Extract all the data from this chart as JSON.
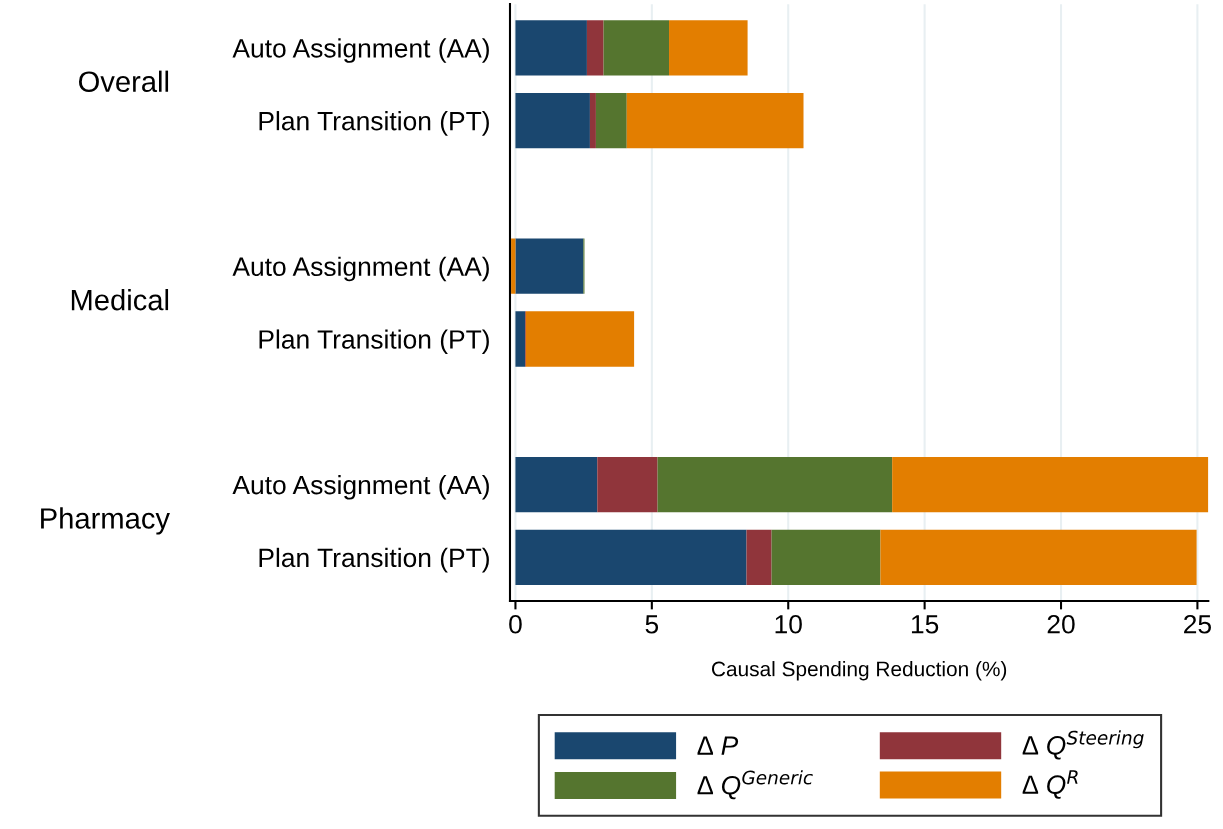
{
  "chart_data": {
    "type": "bar",
    "orientation": "horizontal",
    "stacked": true,
    "categories": [
      "Auto Assignment (AA)",
      "Plan Transition (PT)",
      null,
      "Auto Assignment (AA)",
      "Plan Transition (PT)",
      null,
      "Auto Assignment (AA)",
      "Plan Transition (PT)"
    ],
    "annotations": [
      "Overall",
      "Medical",
      "Pharmacy"
    ],
    "xlabel": "Causal Spending Reduction (%)",
    "xlim": [
      -0.2,
      25.4
    ],
    "xticks": [
      0,
      5,
      10,
      15,
      20,
      25
    ],
    "grid": "x",
    "legend": "bottom",
    "series": [
      {
        "name": "∆ P",
        "color": "#1a476f",
        "values": [
          2.62,
          2.73,
          null,
          2.49,
          0.35,
          null,
          3.0,
          8.47
        ]
      },
      {
        "name": "∆ Q$^{Steering}$",
        "color": "#90353b",
        "values": [
          0.61,
          0.22,
          null,
          0,
          0.03,
          null,
          2.21,
          0.92
        ]
      },
      {
        "name": "∆ Q$^{Generic}$",
        "color": "#55752f",
        "values": [
          2.4,
          1.13,
          null,
          0.04,
          0,
          null,
          8.6,
          3.99
        ]
      },
      {
        "name": "∆ Q$^{R}$",
        "color": "#e37e00",
        "values": [
          2.88,
          6.48,
          null,
          -0.16,
          3.97,
          null,
          11.59,
          11.59
        ]
      }
    ]
  }
}
